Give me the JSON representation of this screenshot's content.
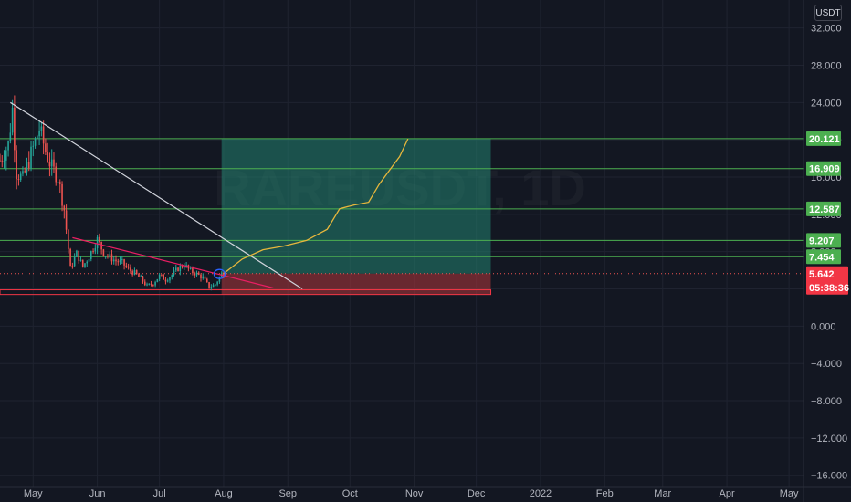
{
  "currency_label": "USDT",
  "watermark": "RAREUSDT, 1D",
  "chart_data": {
    "type": "candlestick",
    "x_start": "2021-04-15",
    "x_end": "2022-05-08",
    "ylim": [
      -17.3,
      35.0
    ],
    "y_ticks": [
      32,
      28,
      24,
      20,
      16,
      12,
      8,
      4,
      0,
      -4,
      -8,
      -12,
      -16
    ],
    "y_tick_labels": [
      "32.000",
      "28.000",
      "24.000",
      "20.000",
      "16.000",
      "12.000",
      "8.000",
      "4.000",
      "0.000",
      "−4.000",
      "−8.000",
      "−12.000",
      "−16.000"
    ],
    "x_ticks": [
      {
        "date": "2021-05-01",
        "label": "May"
      },
      {
        "date": "2021-06-01",
        "label": "Jun"
      },
      {
        "date": "2021-07-01",
        "label": "Jul"
      },
      {
        "date": "2021-08-01",
        "label": "Aug"
      },
      {
        "date": "2021-09-01",
        "label": "Sep"
      },
      {
        "date": "2021-10-01",
        "label": "Oct"
      },
      {
        "date": "2021-11-01",
        "label": "Nov"
      },
      {
        "date": "2021-12-01",
        "label": "Dec"
      },
      {
        "date": "2022-01-01",
        "label": "2022"
      },
      {
        "date": "2022-02-01",
        "label": "Feb"
      },
      {
        "date": "2022-03-01",
        "label": "Mar"
      },
      {
        "date": "2022-04-01",
        "label": "Apr"
      },
      {
        "date": "2022-05-01",
        "label": "May"
      }
    ],
    "price_path": [
      [
        "2021-04-15",
        17.8
      ],
      [
        "2021-04-19",
        19.5
      ],
      [
        "2021-04-21",
        23.3
      ],
      [
        "2021-04-23",
        16.5
      ],
      [
        "2021-04-26",
        15.8
      ],
      [
        "2021-04-29",
        17.8
      ],
      [
        "2021-05-02",
        19.8
      ],
      [
        "2021-05-04",
        21.2
      ],
      [
        "2021-05-07",
        18.8
      ],
      [
        "2021-05-10",
        17.0
      ],
      [
        "2021-05-13",
        16.0
      ],
      [
        "2021-05-16",
        12.5
      ],
      [
        "2021-05-19",
        6.2
      ],
      [
        "2021-05-22",
        7.8
      ],
      [
        "2021-05-25",
        6.4
      ],
      [
        "2021-05-28",
        7.5
      ],
      [
        "2021-06-01",
        9.3
      ],
      [
        "2021-06-04",
        7.9
      ],
      [
        "2021-06-07",
        7.4
      ],
      [
        "2021-06-10",
        7.0
      ],
      [
        "2021-06-13",
        6.8
      ],
      [
        "2021-06-16",
        6.1
      ],
      [
        "2021-06-19",
        5.7
      ],
      [
        "2021-06-22",
        5.1
      ],
      [
        "2021-06-25",
        4.3
      ],
      [
        "2021-06-28",
        4.6
      ],
      [
        "2021-07-01",
        5.4
      ],
      [
        "2021-07-04",
        5.0
      ],
      [
        "2021-07-07",
        5.5
      ],
      [
        "2021-07-10",
        6.2
      ],
      [
        "2021-07-13",
        6.6
      ],
      [
        "2021-07-16",
        5.9
      ],
      [
        "2021-07-19",
        5.6
      ],
      [
        "2021-07-22",
        5.2
      ],
      [
        "2021-07-25",
        4.2
      ],
      [
        "2021-07-28",
        4.5
      ],
      [
        "2021-07-31",
        5.6
      ],
      [
        "2021-08-01",
        5.642
      ]
    ],
    "projection": [
      [
        "2021-08-01",
        5.64
      ],
      [
        "2021-08-10",
        7.2
      ],
      [
        "2021-08-20",
        8.2
      ],
      [
        "2021-08-30",
        8.6
      ],
      [
        "2021-09-10",
        9.2
      ],
      [
        "2021-09-20",
        10.4
      ],
      [
        "2021-09-26",
        12.6
      ],
      [
        "2021-10-03",
        13.0
      ],
      [
        "2021-10-10",
        13.3
      ],
      [
        "2021-10-15",
        15.2
      ],
      [
        "2021-10-20",
        16.7
      ],
      [
        "2021-10-25",
        18.2
      ],
      [
        "2021-10-29",
        20.1
      ]
    ],
    "trendline_white": [
      [
        "2021-04-20",
        24.0
      ],
      [
        "2021-09-08",
        4.0
      ]
    ],
    "trendline_pink": [
      [
        "2021-05-20",
        9.5
      ],
      [
        "2021-08-25",
        4.1
      ]
    ],
    "circle_marker": [
      "2021-07-30",
      5.6
    ],
    "position_box": {
      "start": "2021-07-31",
      "end": "2021-12-08",
      "entry": 5.64,
      "target": 20.121,
      "stop": 3.4
    },
    "support_line": 3.9,
    "levels": [
      {
        "value": 20.121,
        "label": "20.121",
        "color": "#4caf50"
      },
      {
        "value": 16.909,
        "label": "16.909",
        "color": "#4caf50"
      },
      {
        "value": 12.587,
        "label": "12.587",
        "color": "#4caf50"
      },
      {
        "value": 9.207,
        "label": "9.207",
        "color": "#4caf50"
      },
      {
        "value": 7.454,
        "label": "7.454",
        "color": "#4caf50"
      }
    ],
    "last_price": {
      "value": 5.642,
      "label": "5.642",
      "countdown": "05:38:36",
      "color": "#f23645"
    },
    "colors": {
      "background": "#131722",
      "grid": "#1f2330",
      "up": "#26a69a",
      "down": "#ef5350",
      "projection": "#e7b73c",
      "white_line": "#d1d4dc",
      "pink_line": "#e91e63",
      "circle": "#2962ff",
      "target_zone": "#22816f",
      "stop_zone": "#a3343a"
    }
  }
}
